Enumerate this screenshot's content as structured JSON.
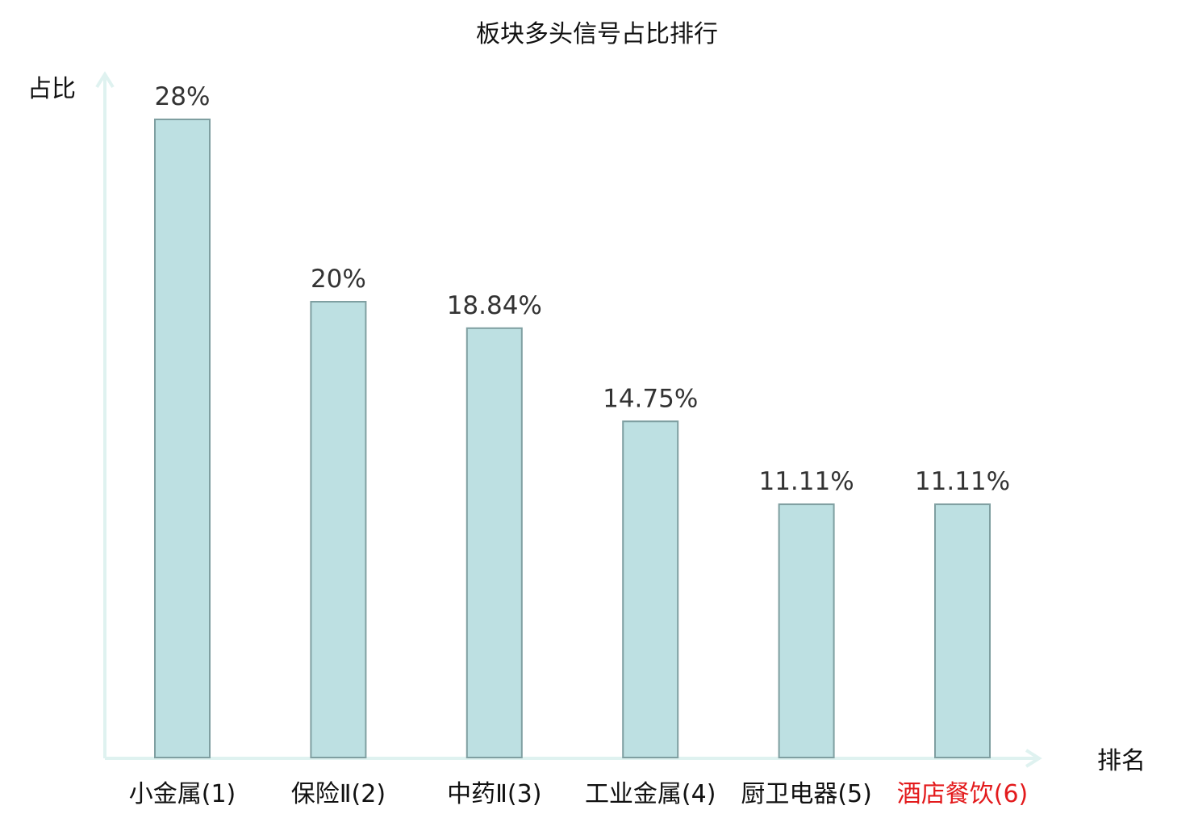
{
  "chart_data": {
    "type": "bar",
    "title": "板块多头信号占比排行",
    "xlabel": "排名",
    "ylabel": "占比",
    "categories": [
      "小金属(1)",
      "保险Ⅱ(2)",
      "中药Ⅱ(3)",
      "工业金属(4)",
      "厨卫电器(5)",
      "酒店餐饮(6)"
    ],
    "values": [
      28,
      20,
      18.84,
      14.75,
      11.11,
      11.11
    ],
    "value_labels": [
      "28%",
      "20%",
      "18.84%",
      "14.75%",
      "11.11%",
      "11.11%"
    ],
    "highlight_category_index": 5,
    "ylim": [
      0,
      28
    ],
    "grid": false,
    "legend": "none"
  },
  "colors": {
    "bar_fill": "#bde0e2",
    "bar_stroke": "#7f9fa1",
    "axis": "#dff2f0",
    "text": "#111111",
    "value_text": "#333333",
    "highlight": "#e31a1c"
  }
}
